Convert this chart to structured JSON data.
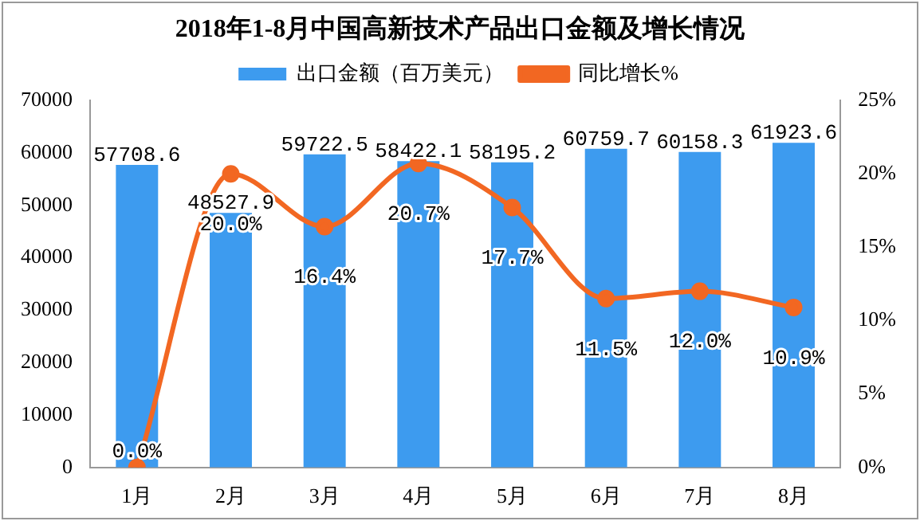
{
  "chart_data": {
    "type": "bar",
    "title": "2018年1-8月中国高新技术产品出口金额及增长情况",
    "categories": [
      "1月",
      "2月",
      "3月",
      "4月",
      "5月",
      "6月",
      "7月",
      "8月"
    ],
    "series": [
      {
        "name": "出口金额（百万美元）",
        "color": "#3d9bef",
        "values": [
          57708.6,
          48527.9,
          59722.5,
          58422.1,
          58195.2,
          60759.7,
          60158.3,
          61923.6
        ],
        "value_labels": [
          "57708.6",
          "48527.9",
          "59722.5",
          "58422.1",
          "58195.2",
          "60759.7",
          "60158.3",
          "61923.6"
        ]
      },
      {
        "name": "同比增长%",
        "type": "line",
        "axis": "y2",
        "color": "#f26722",
        "values": [
          0.0,
          20.0,
          16.4,
          20.7,
          17.7,
          11.5,
          12.0,
          10.9
        ],
        "value_labels": [
          "0.0%",
          "20.0%",
          "16.4%",
          "20.7%",
          "17.7%",
          "11.5%",
          "12.0%",
          "10.9%"
        ]
      }
    ],
    "ylim": [
      0,
      70000
    ],
    "yticks": [
      0,
      10000,
      20000,
      30000,
      40000,
      50000,
      60000,
      70000
    ],
    "y2lim": [
      0,
      25
    ],
    "y2ticks": [
      {
        "value": 0,
        "label": "0%"
      },
      {
        "value": 5,
        "label": "5%"
      },
      {
        "value": 10,
        "label": "10%"
      },
      {
        "value": 15,
        "label": "15%"
      },
      {
        "value": 20,
        "label": "20%"
      },
      {
        "value": 25,
        "label": "25%"
      }
    ],
    "legend": "top",
    "marker": "circle",
    "line_style": "solid",
    "grid": false
  }
}
